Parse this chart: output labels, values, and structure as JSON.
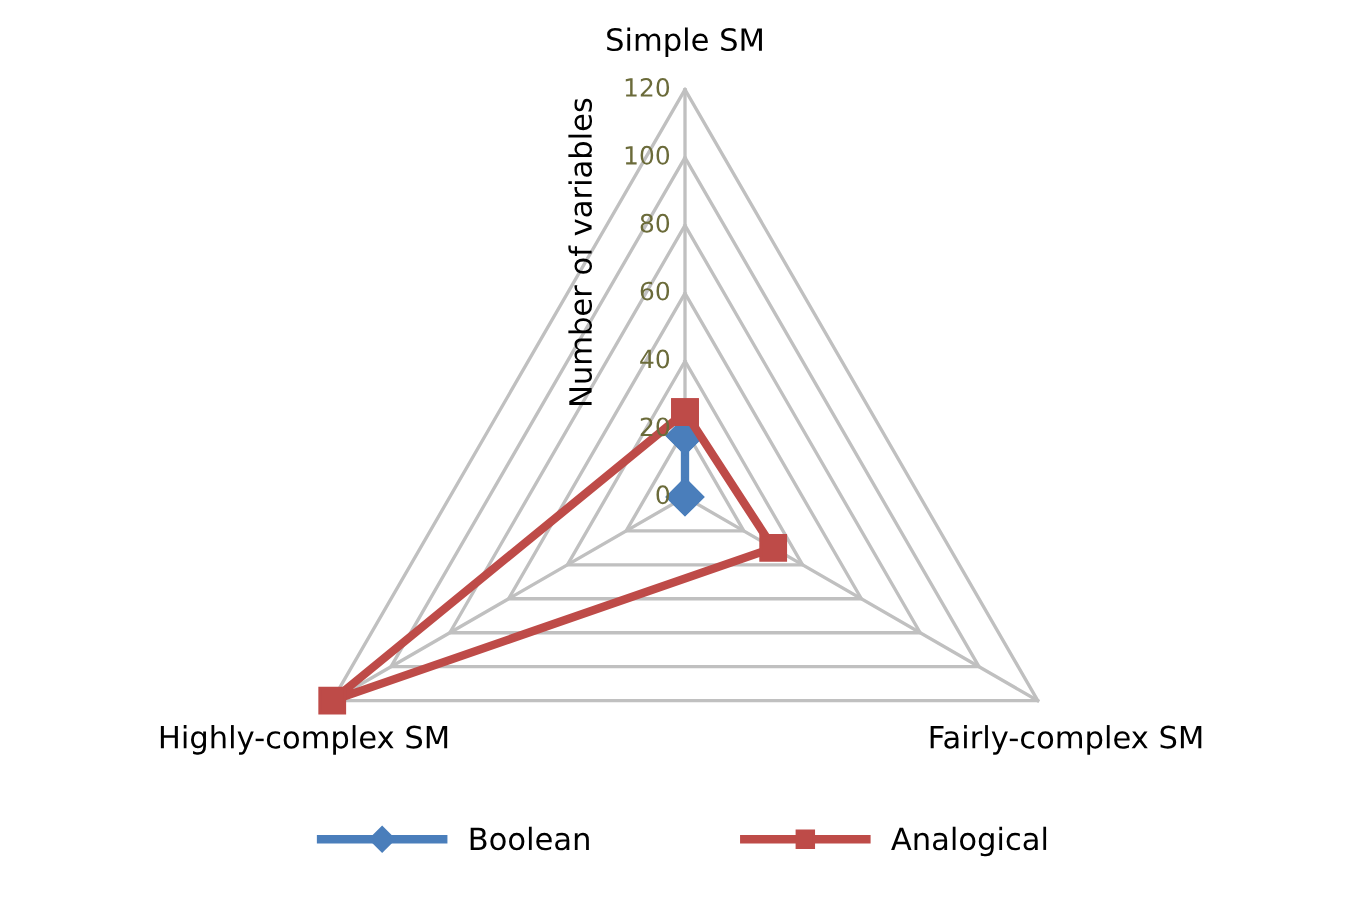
{
  "chart_data": {
    "type": "radar",
    "ylabel": "Number of variables",
    "categories": [
      "Simple SM",
      "Fairly-complex SM",
      "Highly-complex SM"
    ],
    "ylim": [
      0,
      120
    ],
    "yticks": [
      0,
      20,
      40,
      60,
      80,
      100,
      120
    ],
    "grid": true,
    "legend": "bottom",
    "series": [
      {
        "name": "Boolean",
        "color": "#4a7ebb",
        "marker": "diamond",
        "values": [
          18,
          0,
          0
        ]
      },
      {
        "name": "Analogical",
        "color": "#be4b48",
        "marker": "square",
        "values": [
          25,
          30,
          120
        ]
      }
    ]
  }
}
